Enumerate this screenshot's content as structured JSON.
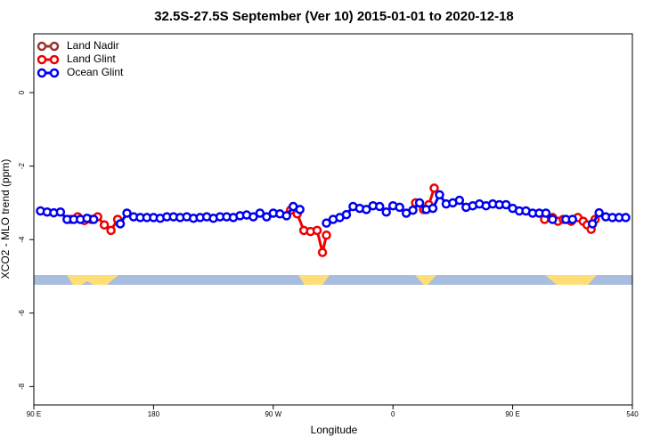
{
  "chart_data": {
    "type": "line",
    "title": "32.5S-27.5S September (Ver 10)   2015-01-01 to 2020-12-18",
    "xlabel": "Longitude",
    "ylabel": "XCO2 - MLO trend (ppm)",
    "xlim": [
      90,
      540
    ],
    "ylim": [
      -8.5,
      1.6
    ],
    "xticks": [
      {
        "value": 90,
        "label": "90 E"
      },
      180,
      {
        "value": 270,
        "label": "90 W"
      },
      {
        "value": 360,
        "label": "0"
      },
      {
        "value": 450,
        "label": "90 E"
      },
      540
    ],
    "yticks": [
      0,
      -2,
      -4,
      -6,
      -8
    ],
    "legend": "top-left",
    "series": [
      {
        "name": "Land Nadir",
        "color": "#993333",
        "x": [],
        "values": []
      },
      {
        "name": "Land Glint",
        "color": "#ee0000",
        "x": [
          118,
          123,
          128,
          133,
          138,
          143,
          148,
          153,
          null,
          283,
          288,
          293,
          298,
          303,
          307,
          310,
          null,
          377,
          383,
          387,
          391,
          null,
          474,
          480,
          484,
          488,
          494,
          499,
          503,
          506,
          509,
          512
        ],
        "values": [
          -3.45,
          -3.38,
          -3.48,
          -3.45,
          -3.38,
          -3.6,
          -3.75,
          -3.45,
          null,
          -3.2,
          -3.3,
          -3.75,
          -3.78,
          -3.75,
          -4.35,
          -3.88,
          null,
          -3.0,
          -3.18,
          -3.05,
          -2.6,
          null,
          -3.45,
          -3.4,
          -3.5,
          -3.45,
          -3.5,
          -3.4,
          -3.5,
          -3.6,
          -3.72,
          -3.45
        ]
      },
      {
        "name": "Ocean Glint",
        "color": "#0000ee",
        "x": [
          95,
          100,
          105,
          110,
          115,
          120,
          125,
          130,
          135,
          140,
          145,
          150,
          155,
          160,
          165,
          170,
          175,
          180,
          185,
          190,
          195,
          200,
          205,
          210,
          215,
          220,
          225,
          230,
          235,
          240,
          245,
          250,
          255,
          260,
          265,
          270,
          275,
          280,
          285,
          290,
          295,
          300,
          305,
          310,
          315,
          320,
          325,
          330,
          335,
          340,
          345,
          350,
          355,
          360,
          365,
          370,
          375,
          380,
          385,
          390,
          395,
          400,
          405,
          410,
          415,
          420,
          425,
          430,
          435,
          440,
          445,
          450,
          455,
          460,
          465,
          470,
          475,
          480,
          485,
          490,
          495,
          500,
          505,
          510,
          515,
          520,
          525,
          530,
          535
        ],
        "values": [
          -3.22,
          -3.25,
          -3.27,
          -3.25,
          -3.45,
          -3.45,
          -3.45,
          -3.42,
          -3.45,
          null,
          null,
          null,
          -3.57,
          -3.28,
          -3.38,
          -3.4,
          -3.4,
          -3.4,
          -3.42,
          -3.38,
          -3.38,
          -3.4,
          -3.38,
          -3.42,
          -3.4,
          -3.38,
          -3.42,
          -3.38,
          -3.38,
          -3.4,
          -3.35,
          -3.33,
          -3.38,
          -3.28,
          -3.38,
          -3.28,
          -3.3,
          -3.35,
          -3.1,
          -3.18,
          null,
          null,
          null,
          -3.55,
          -3.45,
          -3.4,
          -3.32,
          -3.1,
          -3.15,
          -3.18,
          -3.08,
          -3.1,
          -3.25,
          -3.08,
          -3.12,
          -3.28,
          -3.2,
          -3.0,
          -3.18,
          -3.15,
          -2.78,
          -3.03,
          -3.0,
          -2.93,
          -3.12,
          -3.08,
          -3.03,
          -3.08,
          -3.03,
          -3.05,
          -3.05,
          -3.15,
          -3.22,
          -3.22,
          -3.28,
          -3.28,
          -3.28,
          -3.45,
          null,
          -3.45,
          -3.45,
          null,
          null,
          -3.57,
          -3.27,
          -3.38,
          -3.4,
          -3.4,
          -3.4
        ]
      }
    ]
  }
}
